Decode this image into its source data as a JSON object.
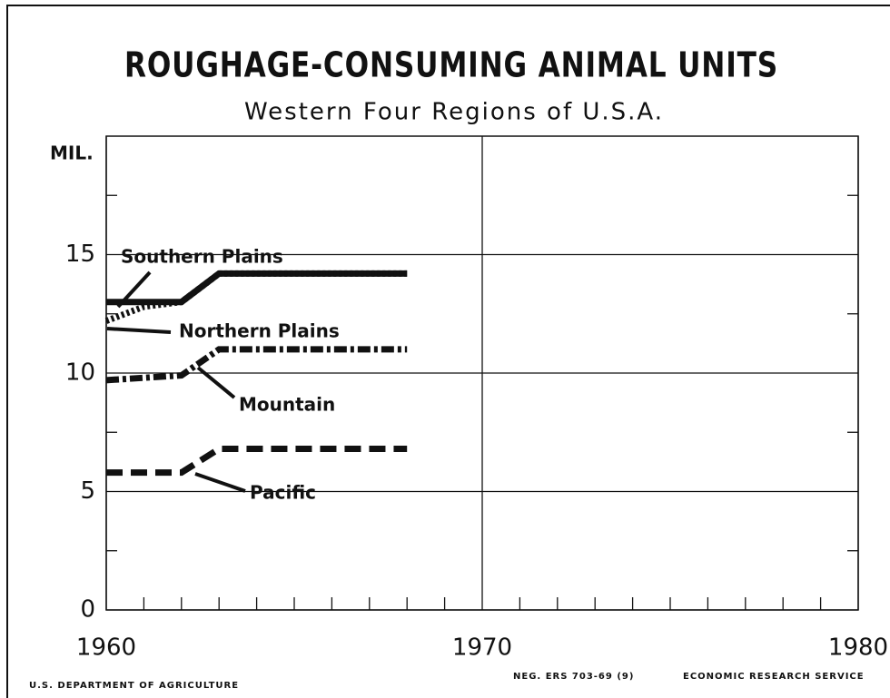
{
  "chart_data": {
    "type": "line",
    "title": "ROUGHAGE-CONSUMING ANIMAL UNITS",
    "subtitle": "Western Four Regions of U.S.A.",
    "y_label": "MIL.",
    "x": [
      1960,
      1961,
      1962,
      1963,
      1964,
      1965,
      1966,
      1967,
      1968
    ],
    "series": [
      {
        "name": "Southern Plains",
        "color": "#111111",
        "dash": "solid",
        "values": [
          13.0,
          13.0,
          13.0,
          14.2,
          14.2,
          14.2,
          14.2,
          14.2,
          14.2
        ]
      },
      {
        "name": "Northern Plains",
        "color": "#111111",
        "dash": "dotted",
        "values": [
          12.2,
          12.8,
          13.0,
          14.2,
          14.2,
          14.2,
          14.2,
          14.2,
          14.2
        ]
      },
      {
        "name": "Mountain",
        "color": "#111111",
        "dash": "dashdot",
        "values": [
          9.7,
          9.8,
          9.9,
          11.0,
          11.0,
          11.0,
          11.0,
          11.0,
          11.0
        ]
      },
      {
        "name": "Pacific",
        "color": "#111111",
        "dash": "dashed",
        "values": [
          5.8,
          5.8,
          5.8,
          6.8,
          6.8,
          6.8,
          6.8,
          6.8,
          6.8
        ]
      }
    ],
    "xlim": [
      1960,
      1980
    ],
    "xticks": [
      1960,
      1970,
      1980
    ],
    "xminorticks": [
      1961,
      1962,
      1963,
      1964,
      1965,
      1966,
      1967,
      1968,
      1969,
      1971,
      1972,
      1973,
      1974,
      1975,
      1976,
      1977,
      1978,
      1979
    ],
    "ylim": [
      0,
      20
    ],
    "yticks": [
      0,
      5,
      10,
      15
    ],
    "yminorticks": [
      2.5,
      7.5,
      12.5,
      17.5
    ],
    "grid": true,
    "footer_left": "U.S. DEPARTMENT OF AGRICULTURE",
    "footer_neg": "NEG. ERS 703-69 (9)",
    "footer_right": "ECONOMIC RESEARCH SERVICE"
  }
}
